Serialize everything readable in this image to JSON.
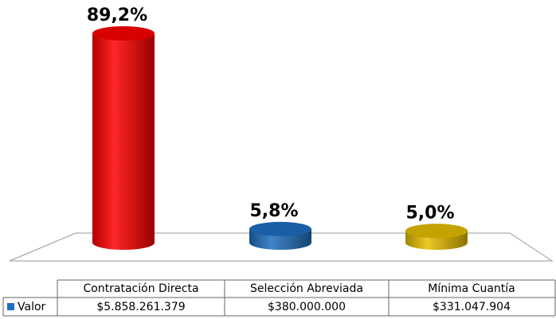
{
  "chart_data": {
    "type": "bar3d",
    "categories": [
      "Contratación Directa",
      "Selección Abreviada",
      "Mínima Cuantía"
    ],
    "series": [
      {
        "name": "Valor",
        "color": "#1f6fc0",
        "values": [
          89.2,
          5.8,
          5.0
        ],
        "value_labels": [
          "89,2%",
          "5,8%",
          "5,0%"
        ],
        "colors": [
          "#ff0000",
          "#1f6fc0",
          "#e6c000"
        ],
        "table_values": [
          "$5.858.261.379",
          "$380.000.000",
          "$331.047.904"
        ]
      }
    ]
  }
}
